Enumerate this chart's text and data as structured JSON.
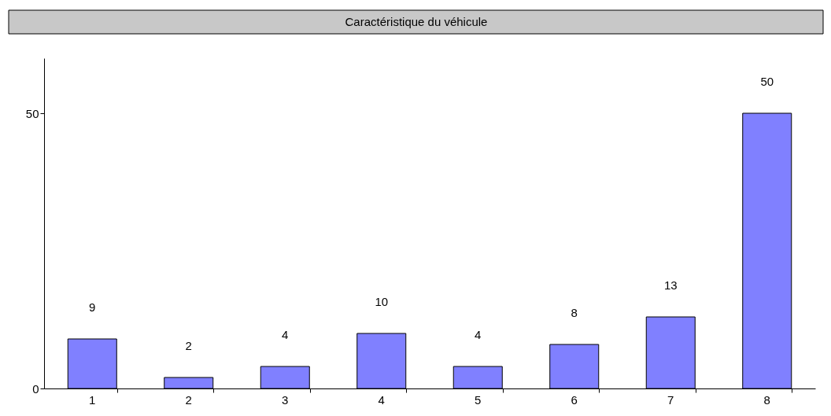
{
  "chart_data": {
    "type": "bar",
    "title": "Caractéristique du véhicule",
    "categories": [
      "1",
      "2",
      "3",
      "4",
      "5",
      "6",
      "7",
      "8"
    ],
    "values": [
      9,
      2,
      4,
      10,
      4,
      8,
      13,
      50
    ],
    "color": "#8080ff",
    "ylim": [
      0,
      60
    ],
    "yticks": [
      0,
      50
    ],
    "grid": false,
    "data_labels": true
  }
}
